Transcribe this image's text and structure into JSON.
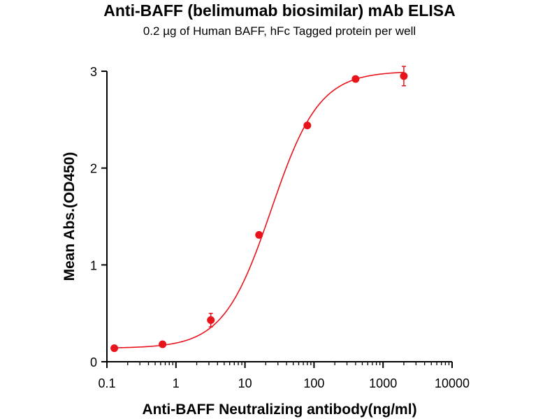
{
  "chart_data": {
    "type": "scatter",
    "title": "Anti-BAFF (belimumab biosimilar) mAb ELISA",
    "subtitle": "0.2 µg of Human BAFF, hFc Tagged protein per well",
    "xlabel": "Anti-BAFF Neutralizing antibody(ng/ml)",
    "ylabel": "Mean Abs.(OD450)",
    "x_scale": "log",
    "xlim": [
      0.1,
      10000
    ],
    "ylim": [
      0,
      3
    ],
    "x_ticks": [
      "0.1",
      "1",
      "10",
      "100",
      "1000",
      "10000"
    ],
    "y_ticks": [
      "0",
      "1",
      "2",
      "3"
    ],
    "color": "#e8141c",
    "grid": false,
    "legend": "none",
    "points": [
      {
        "x": 0.128,
        "y": 0.14,
        "err": 0.0
      },
      {
        "x": 0.64,
        "y": 0.18,
        "err": 0.02
      },
      {
        "x": 3.2,
        "y": 0.43,
        "err": 0.07
      },
      {
        "x": 16,
        "y": 1.31,
        "err": 0.02
      },
      {
        "x": 80,
        "y": 2.44,
        "err": 0.02
      },
      {
        "x": 400,
        "y": 2.92,
        "err": 0.02
      },
      {
        "x": 2000,
        "y": 2.95,
        "err": 0.1
      }
    ],
    "fit_curve": {
      "bottom": 0.14,
      "top": 3.0,
      "ec50": 24,
      "hill": 1.25
    }
  }
}
